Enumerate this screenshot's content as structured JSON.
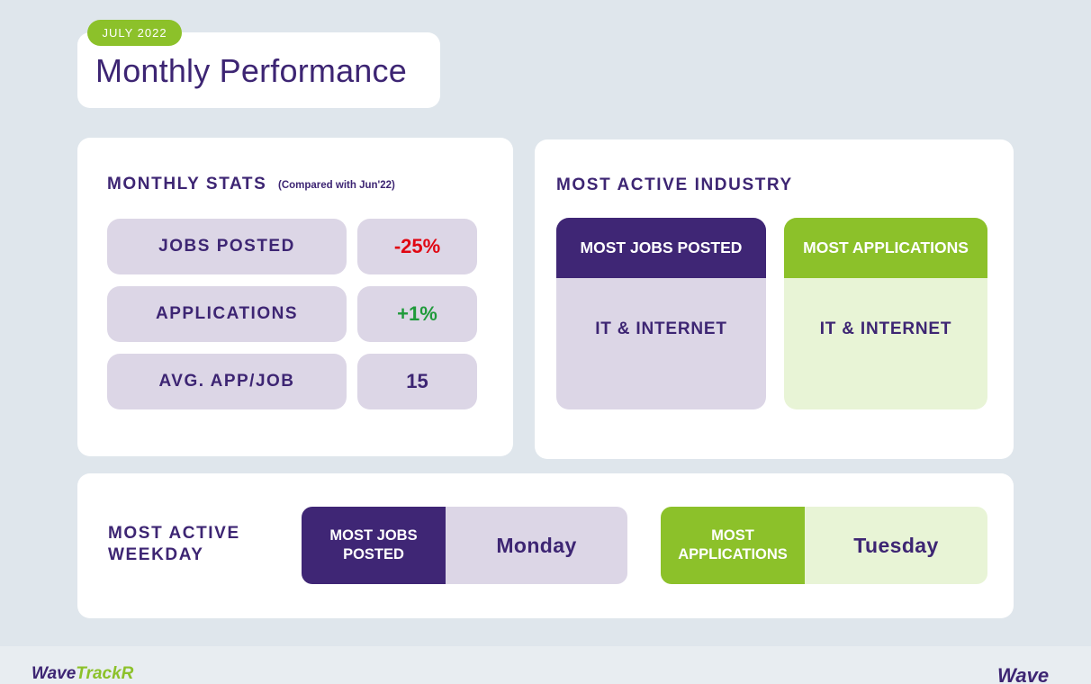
{
  "header": {
    "date_label": "JULY 2022",
    "title": "Monthly Performance"
  },
  "monthly_stats": {
    "title": "MONTHLY STATS",
    "note": "(Compared with Jun'22)",
    "rows": [
      {
        "label": "JOBS POSTED",
        "value": "-25%"
      },
      {
        "label": "APPLICATIONS",
        "value": "+1%"
      },
      {
        "label": "AVG. APP/JOB",
        "value": "15"
      }
    ]
  },
  "industry": {
    "title": "MOST ACTIVE INDUSTRY",
    "most_jobs": {
      "heading": "MOST JOBS POSTED",
      "value": "IT & INTERNET"
    },
    "most_applications": {
      "heading": "MOST APPLICATIONS",
      "value": "IT & INTERNET"
    }
  },
  "weekday": {
    "title": "MOST ACTIVE WEEKDAY",
    "most_jobs": {
      "heading": "MOST JOBS POSTED",
      "value": "Monday"
    },
    "most_applications": {
      "heading": "MOST APPLICATIONS",
      "value": "Tuesday"
    }
  },
  "footer": {
    "logo_left_part1": "Wave",
    "logo_left_part2": "TrackR",
    "logo_right": "Wave"
  },
  "colors": {
    "background": "#dfe6ec",
    "purple": "#3f2675",
    "green": "#8cc12a",
    "light_purple": "#dcd6e6",
    "light_green": "#e8f4d6",
    "negative": "#e00612",
    "positive": "#1f9a3a"
  }
}
